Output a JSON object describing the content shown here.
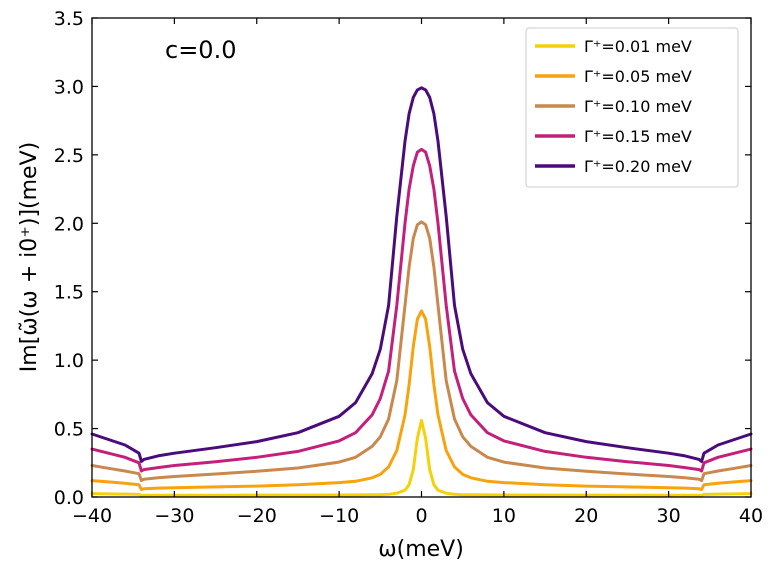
{
  "chart_data": {
    "type": "line",
    "annotation": "c=0.0",
    "xlabel": "ω(meV)",
    "ylabel": "Im[ω̃(ω + i0⁺)](meV)",
    "xlim": [
      -40,
      40
    ],
    "ylim": [
      0,
      3.5
    ],
    "x_ticks": [
      "−40",
      "−30",
      "−20",
      "−10",
      "0",
      "10",
      "20",
      "30",
      "40"
    ],
    "y_ticks": [
      "0.0",
      "0.5",
      "1.0",
      "1.5",
      "2.0",
      "2.5",
      "3.0",
      "3.5"
    ],
    "grid": false,
    "legend_position": "upper-right",
    "x": [
      -40,
      -38,
      -36,
      -34.3,
      -34,
      -33.7,
      -32,
      -30,
      -25,
      -20,
      -15,
      -10,
      -8,
      -6,
      -5,
      -4,
      -3,
      -2,
      -1.5,
      -1,
      -0.5,
      0,
      0.5,
      1,
      1.5,
      2,
      3,
      4,
      5,
      6,
      8,
      10,
      15,
      20,
      25,
      30,
      32,
      33.7,
      34,
      34.3,
      36,
      38,
      40
    ],
    "series": [
      {
        "name": "Γ⁺=0.01  meV",
        "color": "#f5d10a",
        "values": [
          0.025,
          0.023,
          0.021,
          0.019,
          0.012,
          0.0125,
          0.0126,
          0.0128,
          0.0132,
          0.0136,
          0.014,
          0.0145,
          0.015,
          0.016,
          0.017,
          0.02,
          0.028,
          0.05,
          0.09,
          0.2,
          0.43,
          0.56,
          0.43,
          0.2,
          0.09,
          0.05,
          0.028,
          0.02,
          0.017,
          0.016,
          0.015,
          0.0145,
          0.014,
          0.0136,
          0.0132,
          0.0128,
          0.0126,
          0.0125,
          0.012,
          0.019,
          0.021,
          0.023,
          0.025
        ]
      },
      {
        "name": "Γ⁺=0.05  meV",
        "color": "#f8a20e",
        "values": [
          0.12,
          0.11,
          0.1,
          0.09,
          0.055,
          0.06,
          0.065,
          0.068,
          0.074,
          0.08,
          0.09,
          0.105,
          0.115,
          0.14,
          0.165,
          0.22,
          0.34,
          0.6,
          0.82,
          1.1,
          1.3,
          1.36,
          1.3,
          1.1,
          0.82,
          0.6,
          0.34,
          0.22,
          0.165,
          0.14,
          0.115,
          0.105,
          0.09,
          0.08,
          0.074,
          0.068,
          0.065,
          0.06,
          0.055,
          0.09,
          0.1,
          0.11,
          0.12
        ]
      },
      {
        "name": "Γ⁺=0.10  meV",
        "color": "#c9884c",
        "values": [
          0.23,
          0.21,
          0.19,
          0.17,
          0.12,
          0.13,
          0.14,
          0.15,
          0.168,
          0.188,
          0.212,
          0.255,
          0.29,
          0.37,
          0.44,
          0.57,
          0.85,
          1.4,
          1.68,
          1.89,
          1.99,
          2.01,
          1.99,
          1.89,
          1.68,
          1.4,
          0.85,
          0.57,
          0.44,
          0.37,
          0.29,
          0.255,
          0.212,
          0.188,
          0.168,
          0.15,
          0.14,
          0.13,
          0.12,
          0.17,
          0.19,
          0.21,
          0.23
        ]
      },
      {
        "name": "Γ⁺=0.15  meV",
        "color": "#c2207a",
        "values": [
          0.35,
          0.32,
          0.29,
          0.25,
          0.19,
          0.2,
          0.215,
          0.23,
          0.258,
          0.29,
          0.333,
          0.41,
          0.47,
          0.6,
          0.72,
          0.92,
          1.4,
          2.0,
          2.25,
          2.42,
          2.52,
          2.54,
          2.52,
          2.42,
          2.25,
          2.0,
          1.4,
          0.92,
          0.72,
          0.6,
          0.47,
          0.41,
          0.333,
          0.29,
          0.258,
          0.23,
          0.215,
          0.2,
          0.19,
          0.25,
          0.29,
          0.32,
          0.35
        ]
      },
      {
        "name": "Γ⁺=0.20  meV",
        "color": "#4a0c7a",
        "values": [
          0.46,
          0.42,
          0.38,
          0.32,
          0.26,
          0.275,
          0.3,
          0.32,
          0.36,
          0.405,
          0.47,
          0.59,
          0.69,
          0.9,
          1.08,
          1.4,
          2.05,
          2.6,
          2.8,
          2.92,
          2.975,
          2.99,
          2.975,
          2.92,
          2.8,
          2.6,
          2.05,
          1.4,
          1.08,
          0.9,
          0.69,
          0.59,
          0.47,
          0.405,
          0.36,
          0.32,
          0.3,
          0.275,
          0.26,
          0.32,
          0.38,
          0.42,
          0.46
        ]
      }
    ]
  }
}
